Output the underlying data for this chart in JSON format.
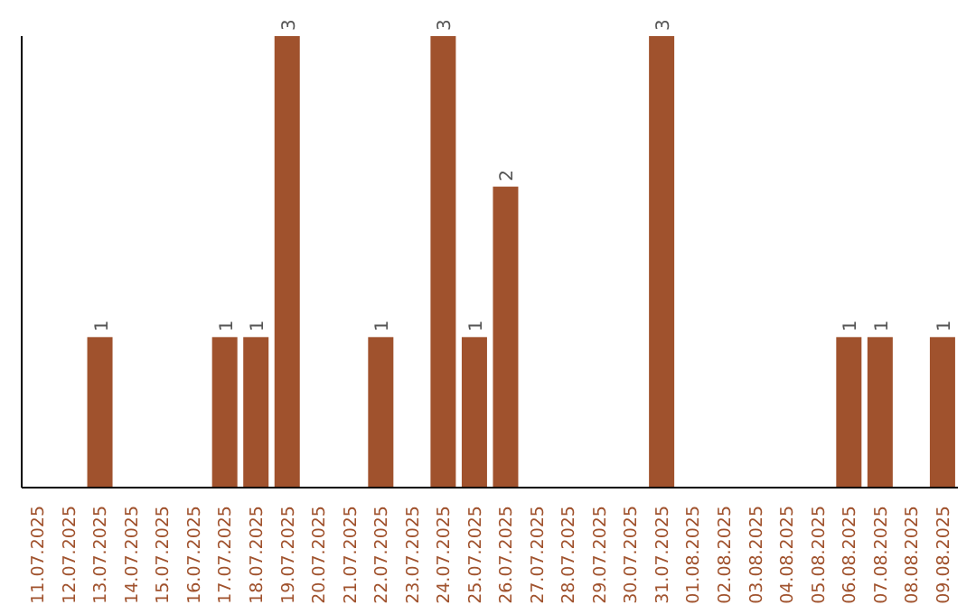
{
  "chart_data": {
    "type": "bar",
    "categories": [
      "11.07.2025",
      "12.07.2025",
      "13.07.2025",
      "14.07.2025",
      "15.07.2025",
      "16.07.2025",
      "17.07.2025",
      "18.07.2025",
      "19.07.2025",
      "20.07.2025",
      "21.07.2025",
      "22.07.2025",
      "23.07.2025",
      "24.07.2025",
      "25.07.2025",
      "26.07.2025",
      "27.07.2025",
      "28.07.2025",
      "29.07.2025",
      "30.07.2025",
      "31.07.2025",
      "01.08.2025",
      "02.08.2025",
      "03.08.2025",
      "04.08.2025",
      "05.08.2025",
      "06.08.2025",
      "07.08.2025",
      "08.08.2025",
      "09.08.2025"
    ],
    "values": [
      0,
      0,
      1,
      0,
      0,
      0,
      1,
      1,
      3,
      0,
      0,
      1,
      0,
      3,
      1,
      2,
      0,
      0,
      0,
      0,
      3,
      0,
      0,
      0,
      0,
      0,
      1,
      1,
      0,
      1
    ],
    "value_labels": [
      null,
      null,
      "1",
      null,
      null,
      null,
      "1",
      "1",
      "3",
      null,
      null,
      "1",
      null,
      "3",
      "1",
      "2",
      null,
      null,
      null,
      null,
      "3",
      null,
      null,
      null,
      null,
      null,
      "1",
      "1",
      null,
      "1"
    ],
    "color": "#a0522d",
    "grid": false,
    "legend": false
  }
}
